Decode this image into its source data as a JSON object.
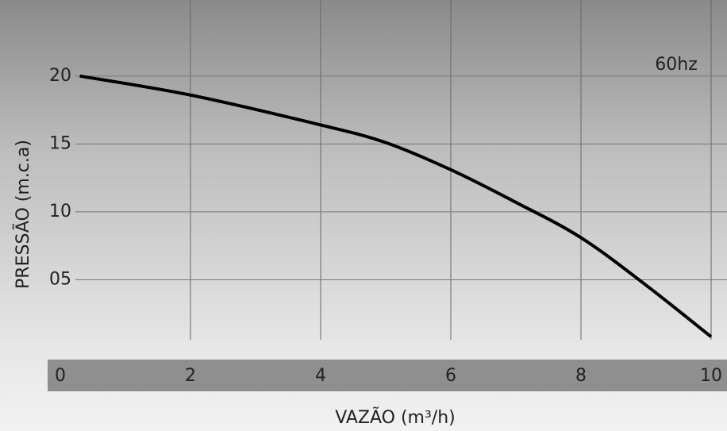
{
  "chart_data": {
    "type": "line",
    "annotation": "60hz",
    "x_label": "VAZÃO (m³/h)",
    "y_label": "PRESSÃO (m.c.a)",
    "x": [
      0.3,
      2,
      4,
      5,
      6,
      7,
      8,
      9,
      10
    ],
    "series": [
      {
        "name": "60hz",
        "color": "#000000",
        "values": [
          20,
          18.6,
          16.4,
          15.1,
          13.1,
          10.7,
          8.1,
          4.6,
          0.8
        ]
      }
    ],
    "xlim": [
      0,
      10
    ],
    "xticks": [
      0,
      2,
      4,
      6,
      8,
      10
    ],
    "ylim": [
      0,
      25.6
    ],
    "yticks": [
      {
        "value": 5,
        "label": "05"
      },
      10,
      15,
      20
    ],
    "grid": true
  }
}
